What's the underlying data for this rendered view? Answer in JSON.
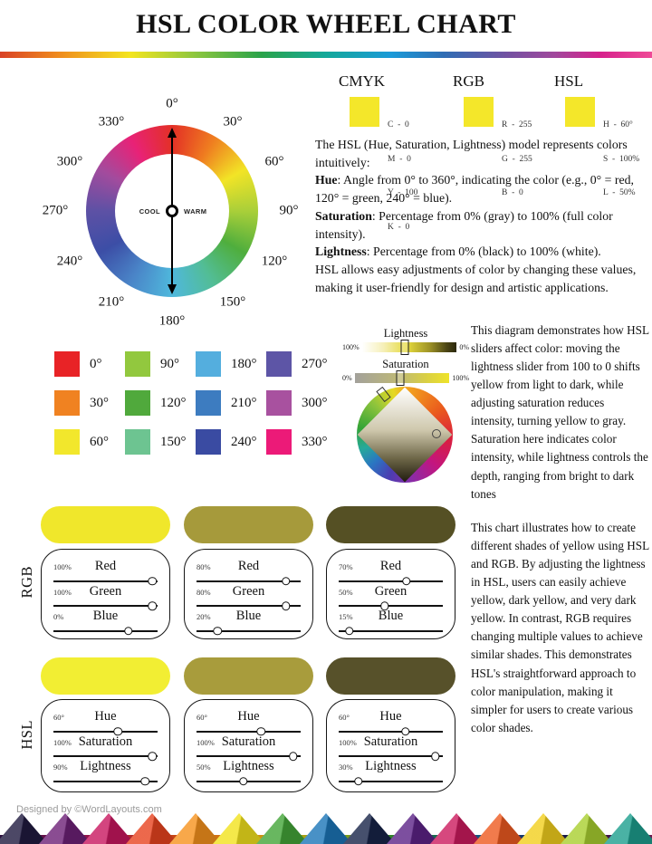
{
  "title": "HSL COLOR WHEEL CHART",
  "legend": {
    "cmyk": {
      "name": "CMYK",
      "swatch": "#f4e72a",
      "rows": [
        "C  -  0",
        "M  -  0",
        "Y  -  100",
        "K  -  0"
      ]
    },
    "rgb": {
      "name": "RGB",
      "swatch": "#f4e72a",
      "rows": [
        "R  -  255",
        "G  -  255",
        "B  -  0"
      ]
    },
    "hsl": {
      "name": "HSL",
      "swatch": "#f4e72a",
      "rows": [
        "H  -  60°",
        "S  -  100%",
        "L  -  50%"
      ]
    }
  },
  "wheel": {
    "labels": [
      "0°",
      "30°",
      "60°",
      "90°",
      "120°",
      "150°",
      "180°",
      "210°",
      "240°",
      "270°",
      "300°",
      "330°"
    ],
    "cool": "COOL",
    "warm": "WARM",
    "hue_ring_colors": [
      "#e33026",
      "#ef7d20",
      "#f2e426",
      "#a9cf39",
      "#4fae3d",
      "#52bd95",
      "#4fb8dc",
      "#4a85c8",
      "#3c4ea6",
      "#5d51a5",
      "#a34b9d",
      "#e82277"
    ]
  },
  "intro": {
    "line1": "The HSL (Hue, Saturation, Lightness) model represents colors intuitively:",
    "hue_term": "Hue",
    "hue_rest": ": Angle from 0° to 360°, indicating the color (e.g., 0° = red, 120° = green, 240° = blue).",
    "sat_term": "Saturation",
    "sat_rest": ": Percentage from 0% (gray) to 100% (full color intensity).",
    "light_term": "Lightness",
    "light_rest": ": Percentage from 0% (black) to 100% (white).",
    "outro": "HSL allows easy adjustments of color by changing these values, making it user-friendly for design and artistic applications."
  },
  "swatch_grid": {
    "items": [
      {
        "label": "0°",
        "color": "#e82326"
      },
      {
        "label": "30°",
        "color": "#f08221"
      },
      {
        "label": "60°",
        "color": "#f2e72c"
      },
      {
        "label": "90°",
        "color": "#92c83e"
      },
      {
        "label": "120°",
        "color": "#50a93c"
      },
      {
        "label": "150°",
        "color": "#6dc491"
      },
      {
        "label": "180°",
        "color": "#54aede"
      },
      {
        "label": "210°",
        "color": "#3d7cc0"
      },
      {
        "label": "240°",
        "color": "#3a4ba2"
      },
      {
        "label": "270°",
        "color": "#5d55a6"
      },
      {
        "label": "300°",
        "color": "#a8519f"
      },
      {
        "label": "330°",
        "color": "#ec1a78"
      }
    ]
  },
  "sliders_demo": {
    "lightness": {
      "label": "Lightness",
      "left_value": "100%",
      "right_value": "0%",
      "handle_pct": 45
    },
    "saturation": {
      "label": "Saturation",
      "left_value": "0%",
      "right_value": "100%",
      "handle_pct": 48
    }
  },
  "demo_text": "This diagram demonstrates how HSL sliders affect color: moving the lightness slider from 100 to 0 shifts yellow from light to dark, while adjusting saturation reduces intensity, turning yellow to gray. Saturation here indicates color intensity, while lightness controls the depth, ranging from bright to dark tones",
  "rgb_section": {
    "label": "RGB",
    "panels": [
      {
        "swatch": "#f0e72b",
        "rows": [
          {
            "pct": "100%",
            "name": "Red",
            "knob_pct": 95
          },
          {
            "pct": "100%",
            "name": "Green",
            "knob_pct": 95
          },
          {
            "pct": "0%",
            "name": "Blue",
            "knob_pct": 72
          }
        ]
      },
      {
        "swatch": "#a69a3b",
        "rows": [
          {
            "pct": "80%",
            "name": "Red",
            "knob_pct": 86
          },
          {
            "pct": "80%",
            "name": "Green",
            "knob_pct": 86
          },
          {
            "pct": "20%",
            "name": "Blue",
            "knob_pct": 20
          }
        ]
      },
      {
        "swatch": "#555024",
        "rows": [
          {
            "pct": "70%",
            "name": "Red",
            "knob_pct": 65
          },
          {
            "pct": "50%",
            "name": "Green",
            "knob_pct": 44
          },
          {
            "pct": "15%",
            "name": "Blue",
            "knob_pct": 10
          }
        ]
      }
    ]
  },
  "hsl_section": {
    "label": "HSL",
    "panels": [
      {
        "swatch": "#f2ee33",
        "rows": [
          {
            "pct": "60°",
            "name": "Hue",
            "knob_pct": 62
          },
          {
            "pct": "100%",
            "name": "Saturation",
            "knob_pct": 95
          },
          {
            "pct": "90%",
            "name": "Lightness",
            "knob_pct": 88
          }
        ]
      },
      {
        "swatch": "#a89c3c",
        "rows": [
          {
            "pct": "60°",
            "name": "Hue",
            "knob_pct": 62
          },
          {
            "pct": "100%",
            "name": "Saturation",
            "knob_pct": 93
          },
          {
            "pct": "50%",
            "name": "Lightness",
            "knob_pct": 45
          }
        ]
      },
      {
        "swatch": "#57512a",
        "rows": [
          {
            "pct": "60°",
            "name": "Hue",
            "knob_pct": 64
          },
          {
            "pct": "100%",
            "name": "Saturation",
            "knob_pct": 93
          },
          {
            "pct": "30%",
            "name": "Lightness",
            "knob_pct": 19
          }
        ]
      }
    ]
  },
  "outro_text": "This chart illustrates how to create different shades of yellow using HSL and RGB. By adjusting the lightness in HSL, users can easily achieve yellow, dark yellow, and very dark yellow. In contrast, RGB requires changing multiple values to achieve similar shades. This demonstrates HSL's straightforward approach to color manipulation, making it simpler for users to create various color shades.",
  "footer": {
    "credit": "Designed by ©WordLayouts.com",
    "zigzag_colors": [
      "#201a40",
      "#6d2077",
      "#c8175f",
      "#e8431f",
      "#f6921d",
      "#f2e21d",
      "#43a538",
      "#1b76b8",
      "#182449",
      "#5c2387",
      "#cc1a5e",
      "#ee5a20",
      "#f2cf1d",
      "#a9cf2f",
      "#1d9f8e"
    ]
  }
}
